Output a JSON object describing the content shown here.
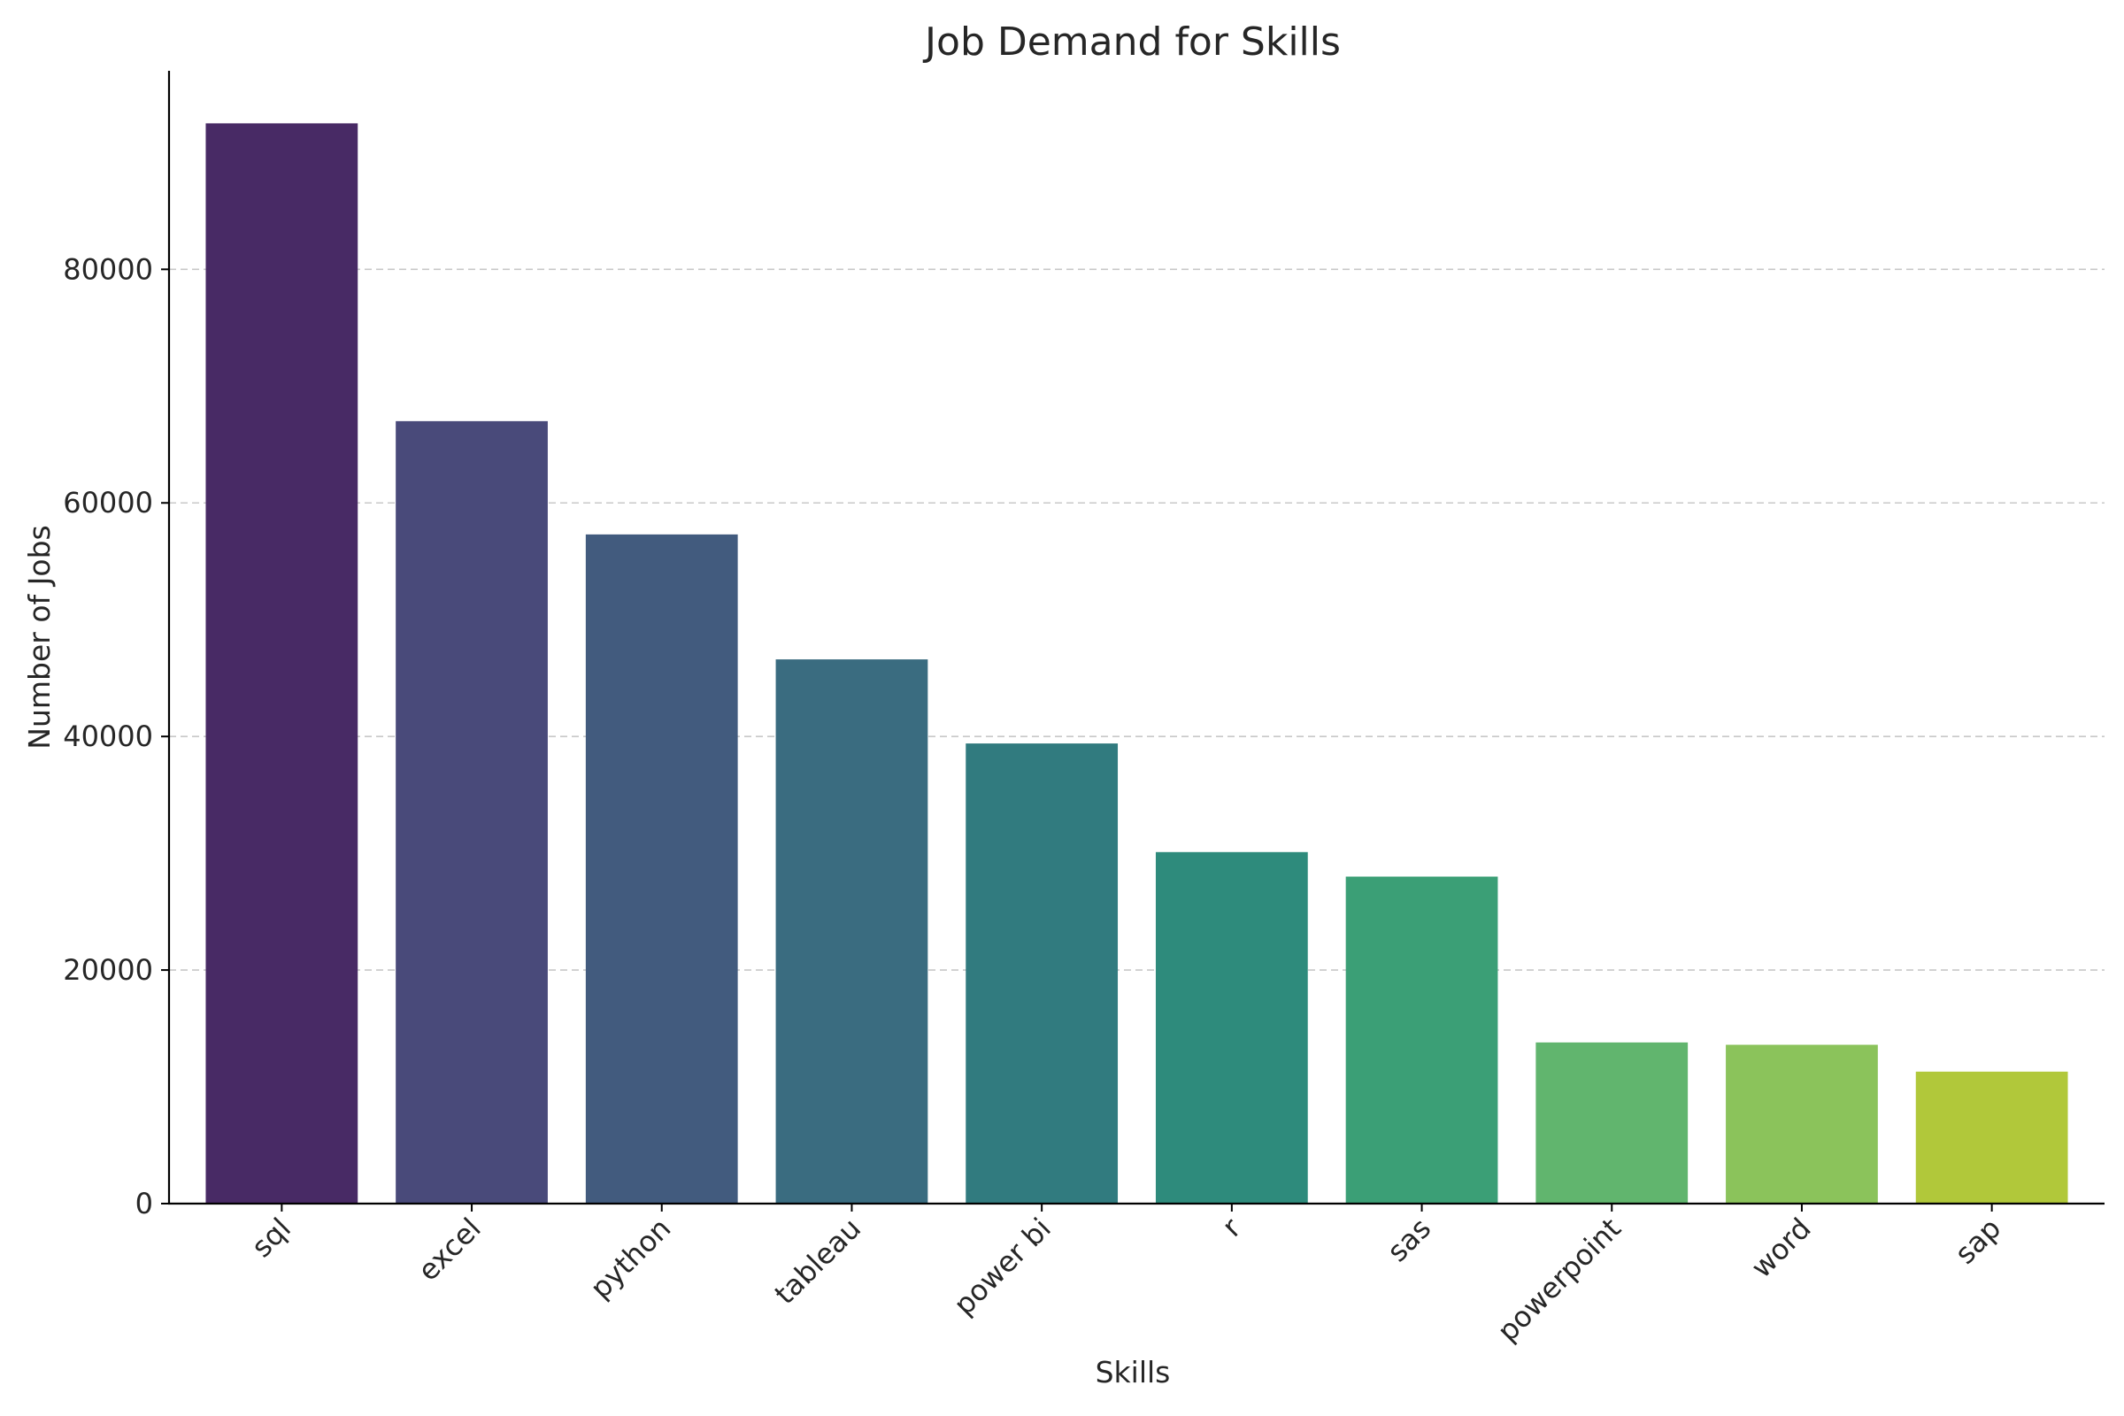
{
  "chart_data": {
    "type": "bar",
    "title": "Job Demand for Skills",
    "xlabel": "Skills",
    "ylabel": "Number of Jobs",
    "categories": [
      "sql",
      "excel",
      "python",
      "tableau",
      "power bi",
      "r",
      "sas",
      "powerpoint",
      "word",
      "sap"
    ],
    "values": [
      92500,
      67000,
      57300,
      46600,
      39400,
      30100,
      28000,
      13800,
      13600,
      11300
    ],
    "colors": [
      "#482a65",
      "#494a7a",
      "#425b7e",
      "#3a6c80",
      "#317b7f",
      "#2e8b7c",
      "#3b9f76",
      "#61b56e",
      "#8bc35b",
      "#b1c83a"
    ],
    "ylim": [
      0,
      97000
    ],
    "yticks": [
      0,
      20000,
      40000,
      60000,
      80000
    ],
    "ytick_labels": [
      "0",
      "20000",
      "40000",
      "60000",
      "80000"
    ],
    "grid": "y-dashed",
    "legend": "none"
  }
}
